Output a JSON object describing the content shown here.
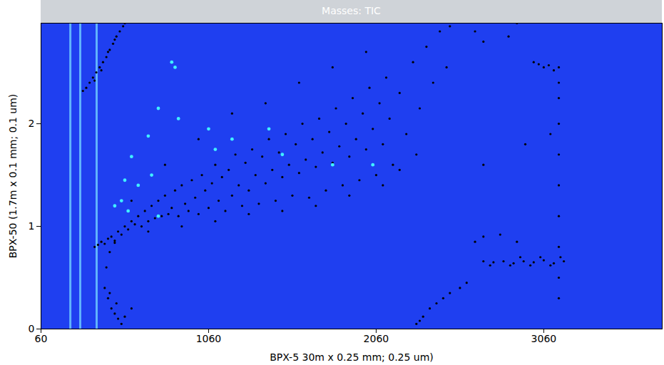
{
  "chart_data": {
    "type": "scatter",
    "title": "Masses: TIC",
    "x_label": "BPX-5 30m x 0.25 mm; 0.25 um)",
    "y_label": "BPX-50 (1.7m x 0.1 mm; 0.1 um)",
    "xlim": [
      60,
      3767
    ],
    "ylim": [
      0,
      2.98
    ],
    "xticks": [
      60,
      1060,
      2060,
      3060
    ],
    "yticks": [
      0,
      1,
      2
    ],
    "grid": false,
    "series": [
      {
        "type": "rule",
        "color": "#6cc8ff",
        "x": [
          235,
          294,
          392
        ]
      },
      {
        "type": "scatter",
        "color": "#000000",
        "marker": "circle",
        "x": [
          380,
          400,
          420,
          440,
          460,
          480,
          500,
          520,
          540,
          560,
          580,
          600,
          620,
          640,
          660,
          680,
          700,
          720,
          740,
          760,
          780,
          800,
          820,
          840,
          860,
          880,
          900,
          920,
          940,
          960,
          980,
          1000,
          1020,
          1040,
          1060,
          1080,
          1100,
          1120,
          1140,
          1160,
          1180,
          1200,
          1220,
          1240,
          1260,
          1280,
          1300,
          1320,
          1340,
          1360,
          1380,
          1400,
          1420,
          1440,
          1460,
          1480,
          1500,
          1520,
          1540,
          1560,
          1580,
          1600,
          1620,
          1640,
          1660,
          1680,
          1700,
          1720,
          1740,
          1760,
          1780,
          1800,
          1820,
          1840,
          1860,
          1880,
          1900,
          1920,
          1940,
          1960,
          1980,
          2000,
          2020,
          2040,
          2060,
          2080,
          2100,
          2120,
          2140,
          2160,
          2200,
          2240,
          2280,
          2320,
          2360,
          2400,
          2440,
          2480,
          2300,
          2200,
          1500,
          1300,
          1700,
          1900,
          2100,
          1100,
          900,
          700,
          500,
          1600,
          1800,
          2000,
          1400,
          1200,
          1000,
          800,
          600,
          2500,
          2650,
          2700,
          2900,
          310,
          330,
          350,
          370,
          390,
          410,
          430,
          450,
          470,
          490,
          510,
          530,
          550,
          380,
          420,
          460,
          500,
          560,
          440,
          460,
          480,
          500,
          520,
          540,
          470,
          510,
          560,
          600,
          450,
          470,
          2300,
          2340,
          2380,
          2420,
          2460,
          2500,
          2320,
          2560,
          2600,
          2650,
          2700,
          2800,
          2900,
          2700,
          2760,
          2820,
          2880,
          2940,
          3000,
          3060,
          3120,
          3180,
          2740,
          2860,
          2980,
          3100,
          3160,
          3040,
          2920,
          3000,
          3030,
          3060,
          3090,
          3120,
          3150,
          3150,
          3150,
          3150,
          3150,
          3150,
          3150,
          3150,
          3150,
          3150,
          2850,
          2700,
          3100,
          2950
        ],
        "y": [
          0.8,
          0.82,
          0.85,
          0.83,
          0.88,
          0.9,
          0.86,
          0.95,
          0.92,
          1.0,
          0.97,
          1.05,
          1.02,
          1.1,
          1.0,
          1.15,
          1.05,
          1.2,
          1.08,
          1.25,
          1.1,
          1.3,
          1.12,
          1.18,
          1.35,
          1.1,
          1.4,
          1.22,
          1.15,
          1.45,
          1.28,
          1.12,
          1.5,
          1.35,
          1.18,
          1.42,
          1.6,
          1.25,
          1.48,
          1.15,
          1.55,
          1.3,
          1.7,
          1.4,
          1.2,
          1.62,
          1.35,
          1.75,
          1.5,
          1.22,
          1.68,
          1.42,
          1.85,
          1.55,
          1.25,
          1.72,
          1.48,
          1.9,
          1.6,
          1.3,
          1.8,
          1.52,
          2.0,
          1.65,
          1.28,
          1.85,
          1.58,
          2.05,
          1.72,
          1.35,
          1.92,
          1.62,
          2.15,
          1.78,
          1.4,
          2.0,
          1.68,
          2.25,
          1.85,
          1.45,
          2.1,
          1.75,
          2.35,
          1.95,
          1.5,
          2.2,
          1.8,
          2.45,
          2.05,
          1.6,
          2.3,
          1.9,
          2.6,
          2.15,
          2.75,
          2.4,
          2.9,
          2.55,
          1.7,
          1.55,
          1.15,
          1.12,
          1.2,
          1.3,
          1.4,
          1.05,
          1.0,
          0.95,
          0.84,
          2.4,
          2.55,
          2.7,
          2.2,
          2.1,
          1.85,
          1.6,
          1.25,
          2.95,
          2.9,
          2.8,
          2.98,
          2.32,
          2.35,
          2.4,
          2.45,
          2.5,
          2.55,
          2.6,
          2.65,
          2.72,
          2.78,
          2.85,
          2.9,
          2.95,
          2.42,
          2.52,
          2.7,
          2.82,
          2.98,
          0.4,
          0.3,
          0.2,
          0.15,
          0.1,
          0.05,
          0.35,
          0.25,
          0.12,
          0.2,
          0.6,
          0.75,
          0.05,
          0.12,
          0.2,
          0.25,
          0.3,
          0.35,
          0.08,
          0.4,
          0.45,
          0.85,
          0.9,
          0.92,
          0.85,
          0.66,
          0.65,
          0.66,
          0.64,
          0.66,
          0.65,
          0.67,
          0.64,
          0.66,
          0.62,
          0.62,
          0.62,
          0.62,
          0.7,
          0.7,
          0.7,
          2.6,
          2.58,
          2.55,
          2.57,
          2.52,
          2.55,
          0.3,
          0.5,
          0.8,
          1.1,
          1.4,
          1.7,
          2.0,
          2.25,
          2.4,
          2.85,
          1.6,
          1.9,
          1.8
        ]
      },
      {
        "type": "scatter",
        "color": "#40f0ff",
        "marker": "circle",
        "x": [
          860,
          840,
          760,
          880,
          700,
          600,
          560,
          640,
          720,
          500,
          540,
          580,
          1060,
          1200,
          1420,
          1100,
          760,
          1800,
          1500,
          2040
        ],
        "y": [
          2.55,
          2.6,
          2.15,
          2.05,
          1.88,
          1.68,
          1.45,
          1.4,
          1.5,
          1.2,
          1.25,
          1.15,
          1.95,
          1.85,
          1.95,
          1.75,
          1.1,
          1.6,
          1.7,
          1.6
        ]
      }
    ]
  }
}
